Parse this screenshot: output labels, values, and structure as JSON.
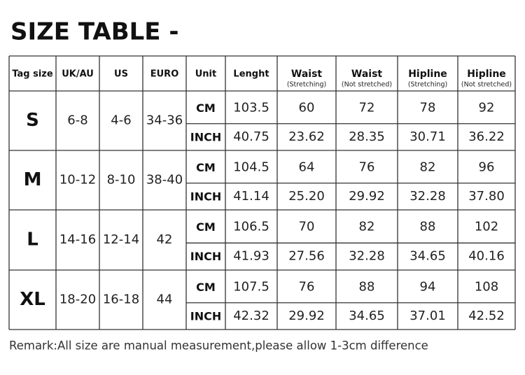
{
  "title": "SIZE TABLE -",
  "table": {
    "headers": [
      {
        "label": "Tag size"
      },
      {
        "label": "UK/AU"
      },
      {
        "label": "US"
      },
      {
        "label": "EURO"
      },
      {
        "label": "Unit"
      },
      {
        "label": "Lenght"
      },
      {
        "label": "Waist",
        "sub": "(Stretching)"
      },
      {
        "label": "Waist",
        "sub": "(Not stretched)"
      },
      {
        "label": "Hipline",
        "sub": "(Stretching)"
      },
      {
        "label": "Hipline",
        "sub": "(Not stretched)"
      }
    ],
    "rows": [
      {
        "size": "S",
        "uk_au": "6-8",
        "us": "4-6",
        "euro": "34-36",
        "measurements": [
          {
            "unit": "CM",
            "values": [
              "103.5",
              "60",
              "72",
              "78",
              "92"
            ]
          },
          {
            "unit": "INCH",
            "values": [
              "40.75",
              "23.62",
              "28.35",
              "30.71",
              "36.22"
            ]
          }
        ]
      },
      {
        "size": "M",
        "uk_au": "10-12",
        "us": "8-10",
        "euro": "38-40",
        "measurements": [
          {
            "unit": "CM",
            "values": [
              "104.5",
              "64",
              "76",
              "82",
              "96"
            ]
          },
          {
            "unit": "INCH",
            "values": [
              "41.14",
              "25.20",
              "29.92",
              "32.28",
              "37.80"
            ]
          }
        ]
      },
      {
        "size": "L",
        "uk_au": "14-16",
        "us": "12-14",
        "euro": "42",
        "measurements": [
          {
            "unit": "CM",
            "values": [
              "106.5",
              "70",
              "82",
              "88",
              "102"
            ]
          },
          {
            "unit": "INCH",
            "values": [
              "41.93",
              "27.56",
              "32.28",
              "34.65",
              "40.16"
            ]
          }
        ]
      },
      {
        "size": "XL",
        "uk_au": "18-20",
        "us": "16-18",
        "euro": "44",
        "measurements": [
          {
            "unit": "CM",
            "values": [
              "107.5",
              "76",
              "88",
              "94",
              "108"
            ]
          },
          {
            "unit": "INCH",
            "values": [
              "42.32",
              "29.92",
              "34.65",
              "37.01",
              "42.52"
            ]
          }
        ]
      }
    ]
  },
  "remark": "Remark:All size are manual measurement,please allow 1-3cm difference"
}
